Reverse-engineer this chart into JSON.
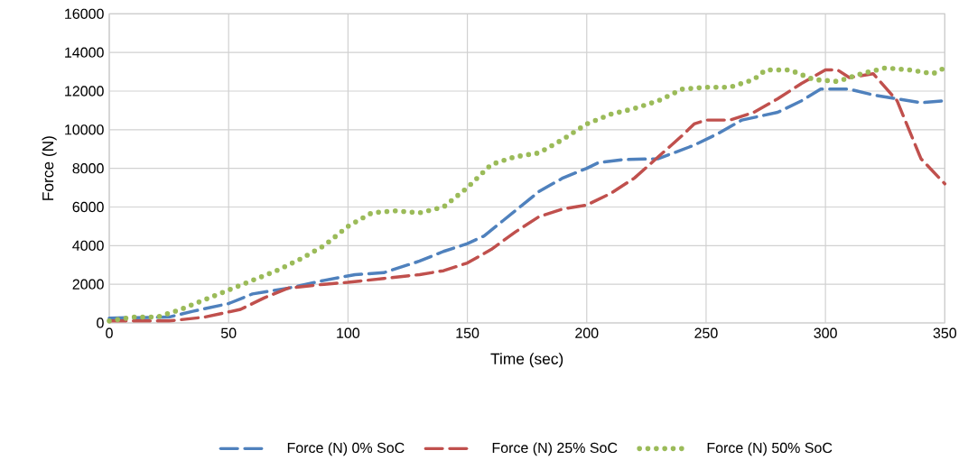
{
  "chart_data": {
    "type": "line",
    "xlabel": "Time (sec)",
    "ylabel": "Force (N)",
    "xlim": [
      0,
      350
    ],
    "xticks": [
      0,
      50,
      100,
      150,
      200,
      250,
      300,
      350
    ],
    "ylim": [
      0,
      16000
    ],
    "yticks": [
      0,
      2000,
      4000,
      6000,
      8000,
      10000,
      12000,
      14000,
      16000
    ],
    "grid": true,
    "legend": "bottom",
    "marker": "none",
    "series": [
      {
        "name": "Force (N) 0% SoC",
        "color": "#4f81bd",
        "line_style": "dashed",
        "x": [
          0,
          25,
          35,
          50,
          60,
          75,
          90,
          103,
          115,
          130,
          140,
          150,
          157,
          165,
          180,
          190,
          200,
          205,
          215,
          230,
          245,
          255,
          265,
          280,
          290,
          298,
          310,
          320,
          340,
          350
        ],
        "values": [
          250,
          300,
          600,
          1000,
          1500,
          1800,
          2200,
          2500,
          2600,
          3200,
          3700,
          4100,
          4500,
          5300,
          6800,
          7500,
          8000,
          8300,
          8450,
          8500,
          9200,
          9800,
          10500,
          10900,
          11500,
          12100,
          12100,
          11800,
          11400,
          11500
        ]
      },
      {
        "name": "Force (N) 25% SoC",
        "color": "#c0504d",
        "line_style": "dashed",
        "x": [
          0,
          25,
          40,
          55,
          65,
          75,
          90,
          100,
          115,
          130,
          140,
          150,
          160,
          170,
          180,
          190,
          200,
          210,
          220,
          230,
          240,
          245,
          250,
          260,
          270,
          280,
          290,
          300,
          305,
          310,
          320,
          330,
          340,
          350
        ],
        "values": [
          100,
          100,
          300,
          700,
          1300,
          1800,
          2000,
          2100,
          2300,
          2500,
          2700,
          3100,
          3800,
          4700,
          5500,
          5900,
          6100,
          6700,
          7500,
          8600,
          9700,
          10300,
          10500,
          10500,
          10900,
          11600,
          12400,
          13100,
          13100,
          12700,
          12900,
          11500,
          8500,
          7200
        ]
      },
      {
        "name": "Force (N) 50% SoC",
        "color": "#9bbb59",
        "line_style": "dotted",
        "x": [
          0,
          10,
          20,
          30,
          40,
          50,
          60,
          70,
          80,
          90,
          100,
          110,
          120,
          130,
          140,
          150,
          160,
          170,
          180,
          190,
          200,
          210,
          220,
          230,
          240,
          250,
          260,
          270,
          275,
          285,
          295,
          305,
          315,
          325,
          335,
          345,
          350
        ],
        "values": [
          100,
          300,
          300,
          700,
          1200,
          1700,
          2200,
          2700,
          3300,
          4000,
          5000,
          5700,
          5800,
          5700,
          6000,
          7000,
          8200,
          8600,
          8800,
          9500,
          10300,
          10800,
          11100,
          11500,
          12100,
          12200,
          12200,
          12600,
          13100,
          13100,
          12600,
          12500,
          12900,
          13200,
          13100,
          12900,
          13200
        ]
      }
    ]
  }
}
